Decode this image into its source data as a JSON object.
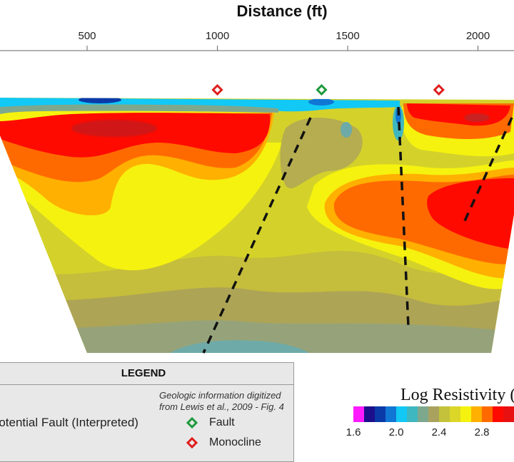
{
  "chart_data": {
    "type": "heatmap",
    "title": "Distance (ft)",
    "x_ticks": [
      500,
      1000,
      1500,
      2000
    ],
    "colorbar": {
      "title": "Log Resistivity (",
      "ticks": [
        1.6,
        2.0,
        2.4,
        2.8
      ],
      "step": 0.1,
      "colors": [
        "#ff1aff",
        "#1c0f8c",
        "#0a3aa8",
        "#1177d4",
        "#12c8f5",
        "#3fb7c0",
        "#7ea88e",
        "#a8a25e",
        "#c3c23a",
        "#dbd628",
        "#f5f20f",
        "#ffb000",
        "#ff6a00",
        "#ff0a00",
        "#e81010"
      ]
    },
    "markers": [
      {
        "type": "Monocline",
        "distance_ft": 1000,
        "color": "#e01c1c"
      },
      {
        "type": "Fault",
        "distance_ft": 1400,
        "color": "#1d9a3c"
      },
      {
        "type": "Monocline",
        "distance_ft": 1850,
        "color": "#e01c1c"
      }
    ]
  },
  "legend": {
    "title": "LEGEND",
    "potential_fault": "Potential Fault (Interpreted)",
    "note_line1": "Geologic information digitized",
    "note_line2": "from Lewis et al., 2009 - Fig. 4",
    "fault": "Fault",
    "monocline": "Monocline"
  }
}
